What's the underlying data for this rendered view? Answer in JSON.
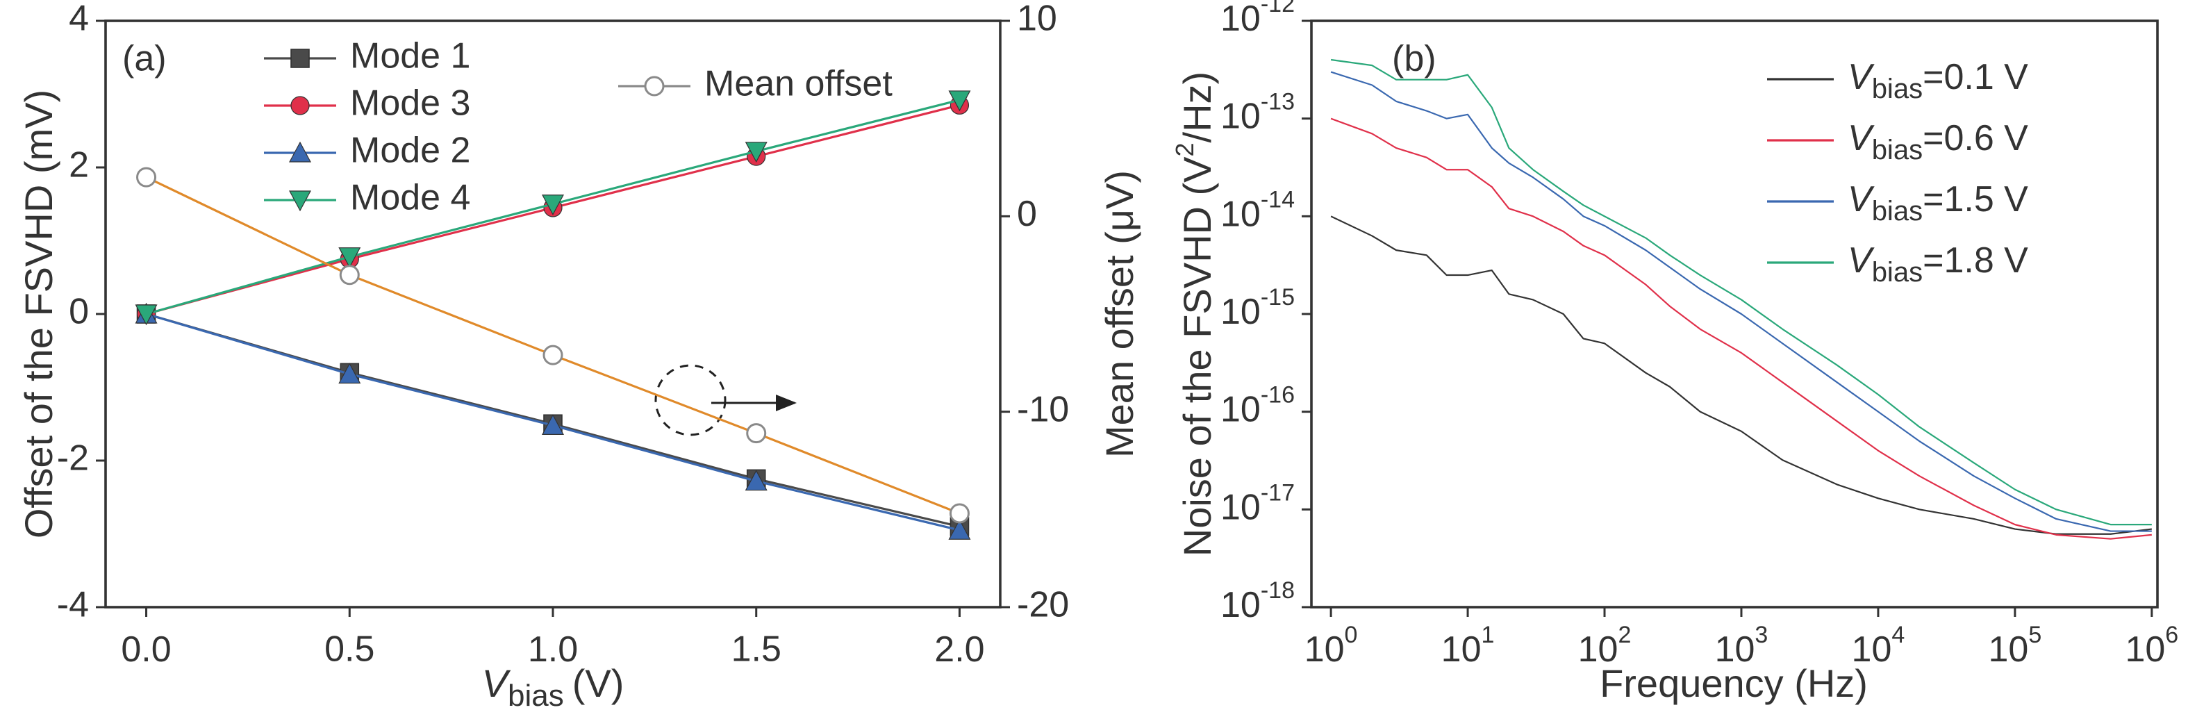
{
  "chart_data": [
    {
      "type": "line",
      "label": "(a)",
      "x_label": {
        "symbol": "V",
        "subscript": "bias",
        "unit": "(V)"
      },
      "y_label": "Offset of the FSVHD (mV)",
      "y2_label": "Mean offset (μV)",
      "x": [
        0,
        0.5,
        1,
        1.5,
        2
      ],
      "xlim": [
        -0.1,
        2.1
      ],
      "xticks": [
        {
          "value": 0,
          "label": "0.0"
        },
        0.5,
        {
          "value": 1,
          "label": "1.0"
        },
        1.5,
        {
          "value": 2,
          "label": "2.0"
        }
      ],
      "ylim": [
        -4,
        4
      ],
      "yticks": [
        -4,
        -2,
        0,
        2,
        4
      ],
      "y2lim": [
        -20,
        10
      ],
      "y2ticks": [
        -20,
        -10,
        0,
        10
      ],
      "series": [
        {
          "name": "Mode 1",
          "color": "#4a4a4a",
          "marker": "square",
          "values": [
            0,
            -0.8,
            -1.5,
            -2.25,
            -2.9
          ]
        },
        {
          "name": "Mode 3",
          "color": "#e0304a",
          "marker": "circle",
          "values": [
            0,
            0.75,
            1.45,
            2.15,
            2.85
          ]
        },
        {
          "name": "Mode 2",
          "color": "#3a68b0",
          "marker": "triangle-up",
          "values": [
            0,
            -0.82,
            -1.52,
            -2.28,
            -2.95
          ]
        },
        {
          "name": "Mode 4",
          "color": "#2aa87a",
          "marker": "triangle-down",
          "values": [
            0,
            0.78,
            1.5,
            2.22,
            2.92
          ]
        },
        {
          "name": "Mean offset",
          "color": "#e08a2a",
          "marker": "open-circle",
          "marker_color": "#8a8a8a",
          "axis": "y2",
          "values": [
            2,
            -3,
            -7.1,
            -11.1,
            -15.2
          ]
        }
      ]
    },
    {
      "type": "line",
      "label": "(b)",
      "xscale": "log",
      "yscale": "log",
      "x_label": "Frequency (Hz)",
      "y_label": {
        "text": "Noise of the FSVHD (V",
        "superscript": "2",
        "rest": "/Hz)"
      },
      "x": [
        1,
        2,
        3,
        5,
        7,
        10,
        15,
        20,
        30,
        50,
        70,
        100,
        200,
        300,
        500,
        1000,
        2000,
        5000,
        10000,
        20000,
        50000,
        100000,
        200000,
        500000,
        1000000
      ],
      "xlim": [
        0.72,
        1100000
      ],
      "xticks": [
        {
          "value": 1,
          "label": "10",
          "exponent": "0"
        },
        {
          "value": 10,
          "label": "10",
          "exponent": "1"
        },
        {
          "value": 100,
          "label": "10",
          "exponent": "2"
        },
        {
          "value": 1000,
          "label": "10",
          "exponent": "3"
        },
        {
          "value": 10000,
          "label": "10",
          "exponent": "4"
        },
        {
          "value": 100000,
          "label": "10",
          "exponent": "5"
        },
        {
          "value": 1000000,
          "label": "10",
          "exponent": "6"
        }
      ],
      "ylim": [
        1e-18,
        1e-12
      ],
      "yticks": [
        {
          "value": 1e-18,
          "label": "10",
          "exponent": "-18"
        },
        {
          "value": 1e-17,
          "label": "10",
          "exponent": "-17"
        },
        {
          "value": 1e-16,
          "label": "10",
          "exponent": "-16"
        },
        {
          "value": 1e-15,
          "label": "10",
          "exponent": "-15"
        },
        {
          "value": 1e-14,
          "label": "10",
          "exponent": "-14"
        },
        {
          "value": 1e-13,
          "label": "10",
          "exponent": "-13"
        },
        {
          "value": 1e-12,
          "label": "10",
          "exponent": "-12"
        }
      ],
      "series": [
        {
          "name": {
            "symbol": "V",
            "subscript": "bias",
            "text": "=0.1 V"
          },
          "color": "#333333",
          "values": [
            1e-14,
            6.3e-15,
            4.5e-15,
            4e-15,
            2.5e-15,
            2.5e-15,
            2.8e-15,
            1.6e-15,
            1.4e-15,
            1e-15,
            5.6e-16,
            5e-16,
            2.5e-16,
            1.8e-16,
            1e-16,
            6.3e-17,
            3.2e-17,
            1.8e-17,
            1.3e-17,
            1e-17,
            8e-18,
            6.3e-18,
            5.6e-18,
            5.6e-18,
            6.3e-18
          ]
        },
        {
          "name": {
            "symbol": "V",
            "subscript": "bias",
            "text": "=0.6 V"
          },
          "color": "#e0304a",
          "values": [
            1e-13,
            7e-14,
            5e-14,
            4e-14,
            3e-14,
            3e-14,
            2e-14,
            1.2e-14,
            1e-14,
            7e-15,
            5e-15,
            4e-15,
            2e-15,
            1.2e-15,
            7e-16,
            4e-16,
            2e-16,
            8e-17,
            4e-17,
            2.2e-17,
            1.1e-17,
            7e-18,
            5.5e-18,
            5e-18,
            5.5e-18
          ]
        },
        {
          "name": {
            "symbol": "V",
            "subscript": "bias",
            "text": "=1.5 V"
          },
          "color": "#3a68b0",
          "values": [
            3e-13,
            2.2e-13,
            1.5e-13,
            1.2e-13,
            1e-13,
            1.1e-13,
            5e-14,
            3.5e-14,
            2.5e-14,
            1.5e-14,
            1e-14,
            8e-15,
            4.5e-15,
            3e-15,
            1.8e-15,
            1e-15,
            5e-16,
            2e-16,
            1e-16,
            5e-17,
            2.2e-17,
            1.3e-17,
            8e-18,
            6e-18,
            6e-18
          ]
        },
        {
          "name": {
            "symbol": "V",
            "subscript": "bias",
            "text": "=1.8 V"
          },
          "color": "#2aa87a",
          "values": [
            4e-13,
            3.5e-13,
            2.5e-13,
            2.5e-13,
            2.5e-13,
            2.8e-13,
            1.3e-13,
            5e-14,
            3e-14,
            1.8e-14,
            1.3e-14,
            1e-14,
            6e-15,
            4e-15,
            2.5e-15,
            1.4e-15,
            7e-16,
            3e-16,
            1.5e-16,
            7e-17,
            3e-17,
            1.6e-17,
            1e-17,
            7e-18,
            7e-18
          ]
        }
      ]
    }
  ]
}
